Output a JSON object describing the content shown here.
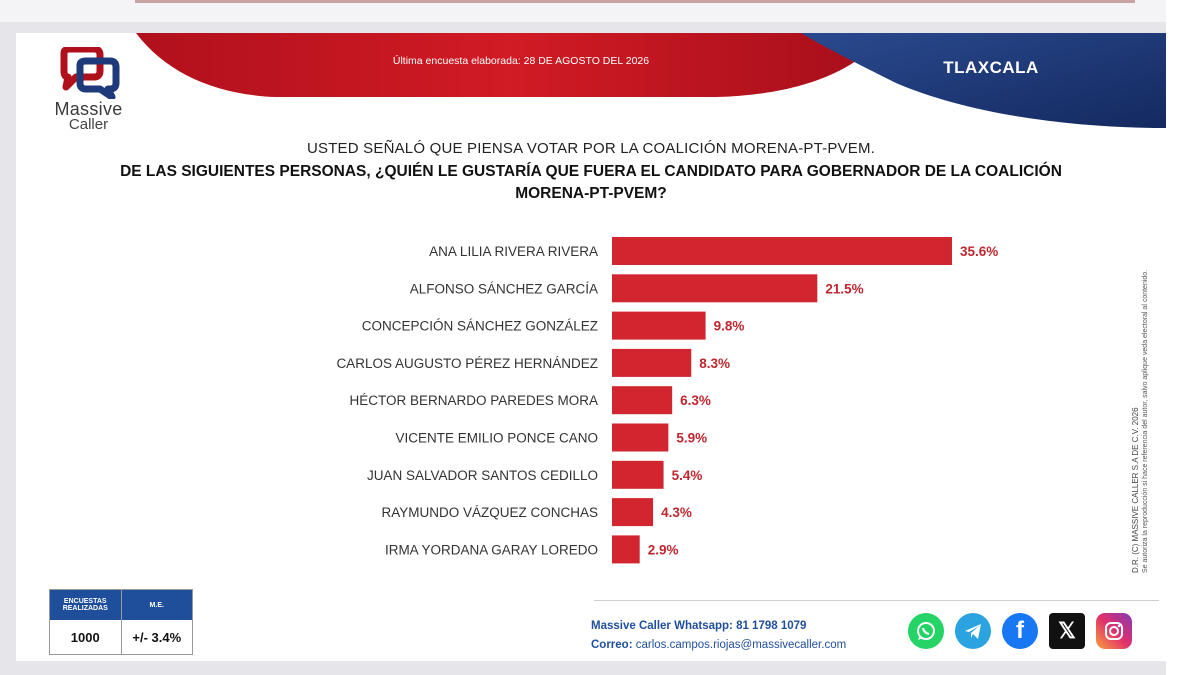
{
  "header": {
    "survey_date": "Última encuesta elaborada: 28 DE AGOSTO DEL 2026",
    "region": "TLAXCALA"
  },
  "brand": {
    "name_line1": "Massive",
    "name_line2": "Caller"
  },
  "question": {
    "line1": "USTED SEÑALÓ QUE PIENSA VOTAR POR LA COALICIÓN MORENA-PT-PVEM.",
    "line2a": "DE LAS SIGUIENTES PERSONAS, ¿QUIÉN LE GUSTARÍA QUE FUERA EL CANDIDATO PARA GOBERNADOR DE LA COALICIÓN",
    "line2b": "MORENA-PT-PVEM?"
  },
  "chart_data": {
    "type": "bar",
    "orientation": "horizontal",
    "categories": [
      "ANA LILIA RIVERA RIVERA",
      "ALFONSO SÁNCHEZ GARCÍA",
      "CONCEPCIÓN SÁNCHEZ GONZÁLEZ",
      "CARLOS AUGUSTO PÉREZ HERNÁNDEZ",
      "HÉCTOR BERNARDO PAREDES MORA",
      "VICENTE EMILIO PONCE CANO",
      "JUAN SALVADOR SANTOS CEDILLO",
      "RAYMUNDO VÁZQUEZ CONCHAS",
      "IRMA YORDANA GARAY LOREDO"
    ],
    "values": [
      35.6,
      21.5,
      9.8,
      8.3,
      6.3,
      5.9,
      5.4,
      4.3,
      2.9
    ],
    "value_labels": [
      "35.6%",
      "21.5%",
      "9.8%",
      "8.3%",
      "6.3%",
      "5.9%",
      "5.4%",
      "4.3%",
      "2.9%"
    ],
    "bar_color": "#d1262f",
    "label_color": "#c0262e",
    "xlim": [
      0,
      40
    ],
    "grid": false
  },
  "side_note": {
    "line1": "D.R. (C) MASSIVE CALLER S.A DE C.V. 2026",
    "line2": "Se autoriza la reproducción si hace referencia del autor, salvo aplique veda electoral al contenido."
  },
  "stats": {
    "col1_header": "ENCUESTAS REALIZADAS",
    "col2_header": "M.E.",
    "col1_value": "1000",
    "col2_value": "+/- 3.4%"
  },
  "contact": {
    "whatsapp": "Massive Caller Whatsapp: 81 1798 1079",
    "email_label": "Correo:",
    "email": "carlos.campos.riojas@massivecaller.com"
  },
  "social_icons": [
    "whatsapp-icon",
    "telegram-icon",
    "facebook-icon",
    "x-icon",
    "instagram-icon"
  ],
  "colors": {
    "brand_red": "#c8102e",
    "brand_navy": "#1f3a7a",
    "brand_blue": "#1f4f9b"
  }
}
